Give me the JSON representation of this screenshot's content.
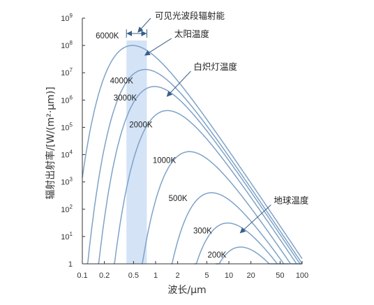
{
  "chart_data": {
    "type": "line",
    "x_scale": "log",
    "y_scale": "log",
    "xlabel": "波长/μm",
    "ylabel": "辐射出射率/[W/(m²·μm)]",
    "xlim": [
      0.1,
      100
    ],
    "ylim": [
      1,
      1000000000
    ],
    "x_ticks": [
      {
        "value": 0.1,
        "label": "0.1"
      },
      {
        "value": 0.2,
        "label": "0.2"
      },
      {
        "value": 0.5,
        "label": "0.5"
      },
      {
        "value": 1,
        "label": "1"
      },
      {
        "value": 2,
        "label": "2"
      },
      {
        "value": 5,
        "label": "5"
      },
      {
        "value": 10,
        "label": "10"
      },
      {
        "value": 20,
        "label": "20"
      },
      {
        "value": 50,
        "label": "50"
      },
      {
        "value": 100,
        "label": "100"
      }
    ],
    "y_ticks": [
      {
        "value": 1,
        "base": "1",
        "exp": ""
      },
      {
        "value": 10,
        "base": "10",
        "exp": "1"
      },
      {
        "value": 100,
        "base": "10",
        "exp": "2"
      },
      {
        "value": 1000,
        "base": "10",
        "exp": "3"
      },
      {
        "value": 10000,
        "base": "10",
        "exp": "4"
      },
      {
        "value": 100000,
        "base": "10",
        "exp": "5"
      },
      {
        "value": 1000000,
        "base": "10",
        "exp": "6"
      },
      {
        "value": 10000000,
        "base": "10",
        "exp": "7"
      },
      {
        "value": 100000000,
        "base": "10",
        "exp": "8"
      },
      {
        "value": 1000000000,
        "base": "10",
        "exp": "9"
      }
    ],
    "series": [
      {
        "name": "6000K",
        "temperature": 6000
      },
      {
        "name": "4000K",
        "temperature": 4000
      },
      {
        "name": "3000K",
        "temperature": 3000
      },
      {
        "name": "2000K",
        "temperature": 2000
      },
      {
        "name": "1000K",
        "temperature": 1000
      },
      {
        "name": "500K",
        "temperature": 500
      },
      {
        "name": "300K",
        "temperature": 300
      },
      {
        "name": "200K",
        "temperature": 200
      }
    ],
    "visible_band": {
      "label": "可见光波段辐射能",
      "x_range": [
        0.4,
        0.76
      ]
    },
    "annotations": [
      {
        "label": "太阳温度",
        "target_series": "6000K"
      },
      {
        "label": "白炽灯温度",
        "target_series": "3000K"
      },
      {
        "label": "地球温度",
        "target_series": "300K"
      }
    ],
    "grid": false,
    "colors": {
      "curve": "#7ea2c7",
      "band": "#cfe0f5",
      "axis": "#333333",
      "arrow": "#3a5f86"
    }
  }
}
